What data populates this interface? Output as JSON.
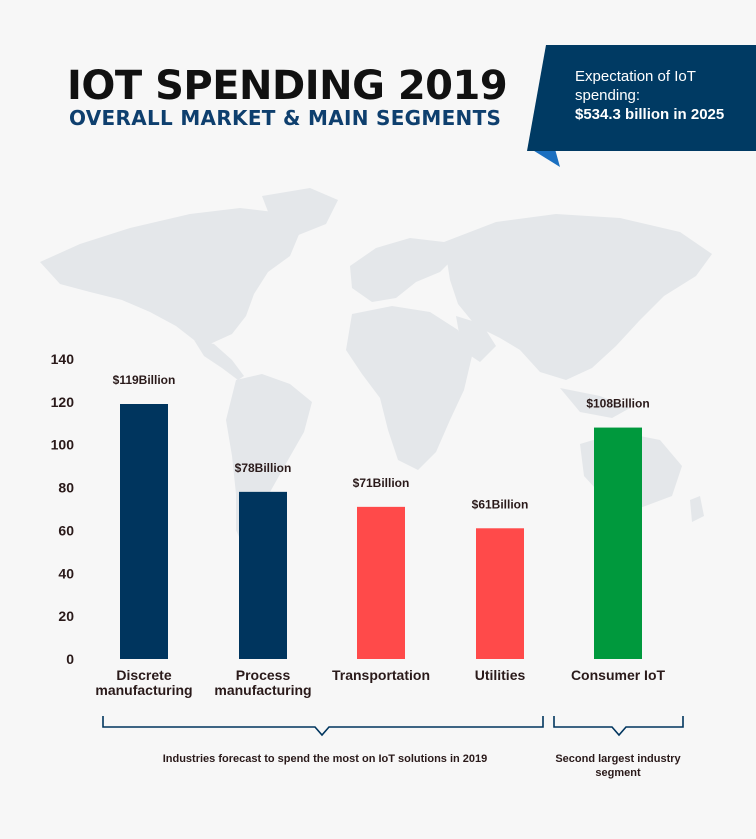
{
  "header": {
    "title": "IOT SPENDING 2019",
    "subtitle": "OVERALL MARKET & MAIN SEGMENTS"
  },
  "callout": {
    "line1": "Expectation of IoT spending:",
    "line2": "$534.3 billion in 2025"
  },
  "chart_data": {
    "type": "bar",
    "categories": [
      [
        "Discrete",
        "manufacturing"
      ],
      [
        "Process",
        "manufacturing"
      ],
      [
        "Transportation"
      ],
      [
        "Utilities"
      ],
      [
        "Consumer IoT"
      ]
    ],
    "values": [
      119,
      78,
      71,
      61,
      108
    ],
    "value_labels": [
      "$119Billion",
      "$78Billion",
      "$71Billion",
      "$61Billion",
      "$108Billion"
    ],
    "colors": [
      "#00355e",
      "#00355e",
      "#ff4a4a",
      "#ff4a4a",
      "#00993d"
    ],
    "ylim": [
      0,
      140
    ],
    "yticks": [
      0,
      20,
      40,
      60,
      80,
      100,
      120,
      140
    ],
    "grid": false,
    "background": "world-map"
  },
  "annotations": {
    "group1": "Industries forecast to spend the most on IoT solutions in 2019",
    "group2": "Second largest industry segment"
  },
  "colors": {
    "navy": "#00355e",
    "red": "#ff4a4a",
    "green": "#00993d",
    "callout_bg": "#003a63",
    "callout_fold": "#1a6fc0",
    "map": "#e4e7ea"
  }
}
